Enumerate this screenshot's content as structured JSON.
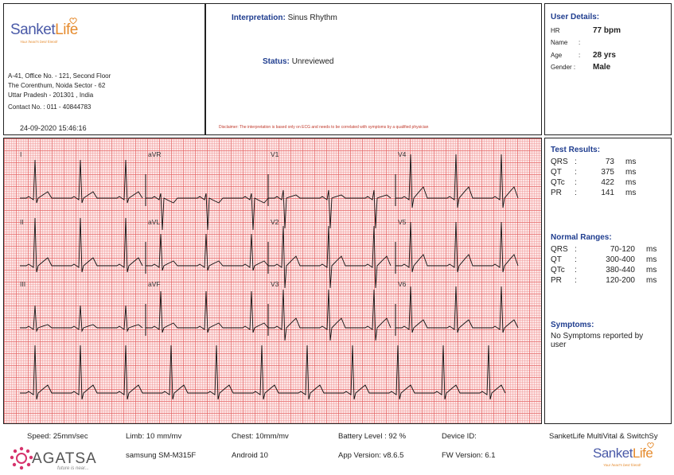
{
  "header": {
    "logo_sanket": "Sanket",
    "logo_life": "Life",
    "logo_tagline": "Your heart's best friend!",
    "address_line1": "A-41, Office No. - 121, Second Floor",
    "address_line2": "The Corenthum, Noida Sector - 62",
    "address_line3": "Uttar Pradesh - 201301 , India",
    "contact": "Contact No. : 011 - 40844783",
    "datetime": "24-09-2020 15:46:16"
  },
  "interpretation": {
    "label": "Interpretation:",
    "value": "Sinus Rhythm",
    "status_label": "Status:",
    "status_value": "Unreviewed",
    "disclaimer": "Disclaimer: The interpretation is based only on ECG and needs to be correlated with symptoms by a qualified physician"
  },
  "user": {
    "title": "User Details:",
    "hr_label": "HR",
    "hr_value": "77 bpm",
    "name_label": "Name",
    "name_sep": ":",
    "age_label": "Age",
    "age_sep": ":",
    "age_value": "28 yrs",
    "gender_label": "Gender :",
    "gender_value": "Male"
  },
  "test_results": {
    "title": "Test Results:",
    "rows": [
      {
        "label": "QRS",
        "sep": ":",
        "value": "73",
        "unit": "ms"
      },
      {
        "label": "QT",
        "sep": ":",
        "value": "375",
        "unit": "ms"
      },
      {
        "label": "QTc",
        "sep": ":",
        "value": "422",
        "unit": "ms"
      },
      {
        "label": "PR",
        "sep": ":",
        "value": "141",
        "unit": "ms"
      }
    ]
  },
  "normal_ranges": {
    "title": "Normal Ranges:",
    "rows": [
      {
        "label": "QRS",
        "sep": ":",
        "value": "70-120",
        "unit": "ms"
      },
      {
        "label": "QT",
        "sep": ":",
        "value": "300-400",
        "unit": "ms"
      },
      {
        "label": "QTc",
        "sep": ":",
        "value": "380-440",
        "unit": "ms"
      },
      {
        "label": "PR",
        "sep": ":",
        "value": "120-200",
        "unit": "ms"
      }
    ]
  },
  "symptoms": {
    "title": "Symptoms:",
    "text_line1": "No Symptoms reported by",
    "text_line2": "user"
  },
  "ecg": {
    "leads": [
      "I",
      "aVR",
      "V1",
      "V4",
      "II",
      "aVL",
      "V2",
      "V5",
      "III",
      "aVF",
      "V3",
      "V6"
    ],
    "trace_color": "#111111",
    "grid_major_color": "#e15a5a",
    "grid_minor_color": "#f09696",
    "grid_bg_color": "#fde6e6"
  },
  "footer": {
    "speed": "Speed: 25mm/sec",
    "limb": "Limb: 10 mm/mv",
    "chest": "Chest: 10mm/mv",
    "battery": "Battery Level : 92 %",
    "device_id": "Device ID:",
    "product": "SanketLife MultiVital & SwitchSy",
    "device_model": "samsung SM-M315F",
    "android": "Android 10",
    "app_version": "App Version: v8.6.5",
    "fw_version": "FW Version: 6.1",
    "agatsa_logo": "AGATSA",
    "agatsa_tagline": "future is near...",
    "logo_sanket": "Sanket",
    "logo_life": "Life",
    "logo_tagline": "Your heart's best friend!"
  }
}
